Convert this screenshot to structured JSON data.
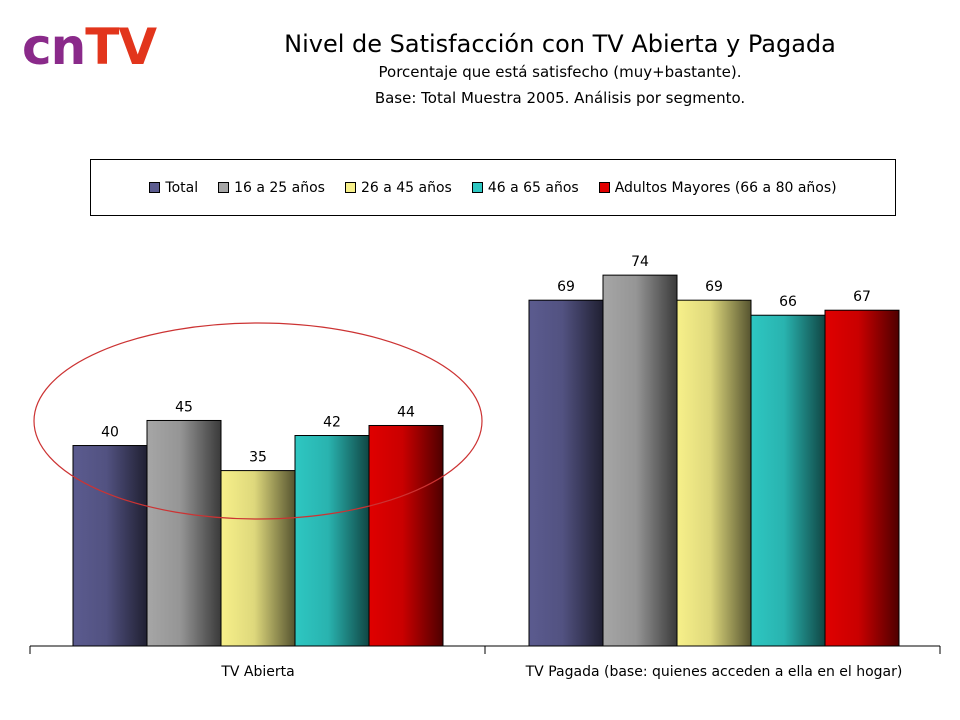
{
  "logo": {
    "part1": "cn",
    "part2": "TV"
  },
  "title": "Nivel de Satisfacción con TV Abierta y Pagada",
  "subtitle": "Porcentaje que está satisfecho (muy+bastante).",
  "subtitle2": "Base: Total Muestra 2005. Análisis por segmento.",
  "colors": {
    "series": [
      "#5b5b8f",
      "#a6a6a6",
      "#f7f08a",
      "#2ec7c2",
      "#e00000"
    ],
    "highlight_ellipse": "#cc3333"
  },
  "chart_data": {
    "type": "bar",
    "categories": [
      "TV Abierta",
      "TV Pagada (base: quienes acceden a ella en el hogar)"
    ],
    "series": [
      {
        "name": "Total",
        "values": [
          40,
          69
        ]
      },
      {
        "name": "16 a 25 años",
        "values": [
          45,
          74
        ]
      },
      {
        "name": "26 a 45 años",
        "values": [
          35,
          69
        ]
      },
      {
        "name": "46 a 65 años",
        "values": [
          42,
          66
        ]
      },
      {
        "name": "Adultos Mayores (66 a 80 años)",
        "values": [
          44,
          67
        ]
      }
    ],
    "ylim": [
      0,
      85
    ],
    "grid": false,
    "legend_position": "top",
    "annotations": [
      "ellipse around TV Abierta group"
    ]
  }
}
